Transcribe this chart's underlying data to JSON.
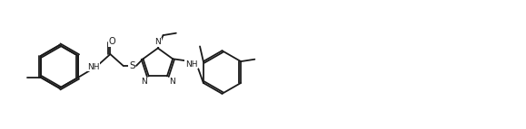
{
  "background_color": "#ffffff",
  "line_color": "#1a1a1a",
  "fig_width": 5.79,
  "fig_height": 1.43,
  "dpi": 100,
  "lw": 1.3,
  "font_size": 7.0,
  "xlim": [
    0,
    11.5
  ],
  "ylim": [
    0,
    3.0
  ]
}
